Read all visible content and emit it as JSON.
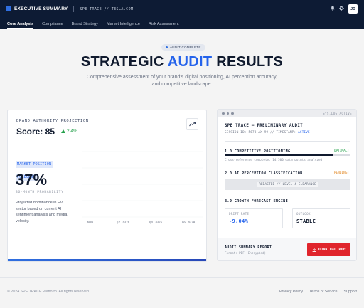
{
  "header": {
    "app_title": "EXECUTIVE SUMMARY",
    "breadcrumb": "SPE TRACE // TESLA.COM",
    "avatar_initials": "JD",
    "icons": [
      "bell-icon",
      "gear-icon"
    ]
  },
  "nav": {
    "tabs": [
      {
        "label": "Core Analysis",
        "active": true
      },
      {
        "label": "Compliance",
        "active": false
      },
      {
        "label": "Brand Strategy",
        "active": false
      },
      {
        "label": "Market Intelligence",
        "active": false
      },
      {
        "label": "Risk Assessment",
        "active": false
      }
    ]
  },
  "hero": {
    "badge": "AUDIT COMPLETE",
    "title_part1": "STRATEGIC ",
    "title_accent": "AUDIT",
    "title_part2": " RESULTS",
    "subtitle": "Comprehensive assessment of your brand's digital positioning, AI perception accuracy, and competitive landscape."
  },
  "authority": {
    "label": "BRAND AUTHORITY PROJECTION",
    "score": "Score: 85",
    "delta": "2.4%",
    "forecast_tag_line1": "MARKET POSITION",
    "forecast_tag_line2": "FORECAST",
    "probability": "37%",
    "probability_label": "36-MONTH PROBABILITY",
    "description": "Projected dominance in EV sector based on current AI sentiment analysis and media velocity."
  },
  "chart_data": {
    "type": "line",
    "categories": [
      "NOW",
      "Q2 2026",
      "Q4 2026",
      "Q6 2028"
    ],
    "series": [],
    "grid": true
  },
  "audit": {
    "system_status": "SYS.LOG ACTIVE",
    "title": "SPE TRACE — PRELIMINARY AUDIT",
    "session_prefix": "SESSION ID: 5678-AX-99 // TIMESTAMP: ",
    "session_status": "ACTIVE",
    "sections": {
      "competitive": {
        "title": "1.0 COMPETITIVE POSITIONING",
        "tag": "[OPTIMAL]",
        "progress": 0.86,
        "note": "Cross-reference complete. 14,500 data points analyzed."
      },
      "ai_perception": {
        "title": "2.0 AI PERCEPTION CLASSIFICATION",
        "tag": "[PENDING]",
        "redacted": "REDACTED // LEVEL 4 CLEARANCE"
      },
      "growth": {
        "title": "3.0 GROWTH FORECAST ENGINE"
      }
    },
    "metrics": [
      {
        "label": "DRIFT RATE",
        "value": "-9.04%",
        "color": "#2563eb"
      },
      {
        "label": "OUTLOOK",
        "value": "STABLE",
        "color": "#101a2e"
      }
    ],
    "report": {
      "title": "AUDIT SUMMARY REPORT",
      "format": "Format: PDF (Encrypted)",
      "download_label": "DOWNLOAD PDF"
    }
  },
  "footer": {
    "copyright": "© 2024 SPE TRACE Platform. All rights reserved.",
    "links": [
      "Privacy Policy",
      "Terms of Service",
      "Support"
    ]
  },
  "colors": {
    "navy": "#0d1b34",
    "accent": "#2563eb",
    "success": "#24a04b",
    "warning": "#e0831b",
    "danger": "#e0242c"
  }
}
